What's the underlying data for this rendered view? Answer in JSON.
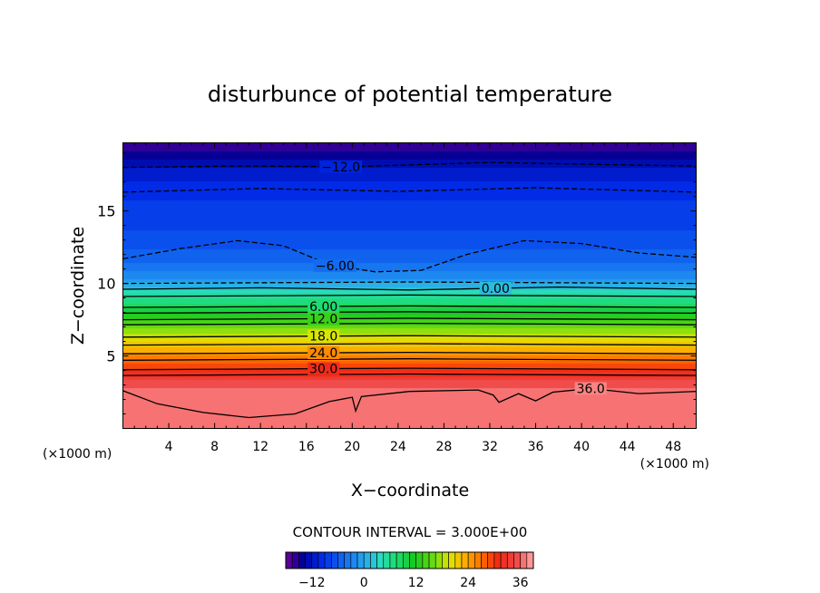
{
  "chart_data": {
    "type": "heatmap",
    "title": "disturbunce of potential temperature",
    "xlabel": "X−coordinate",
    "ylabel": "Z−coordinate",
    "x_unit_left": "(×1000 m)",
    "x_unit_right": "(×1000 m)",
    "xlim": [
      0,
      50
    ],
    "ylim": [
      0,
      19.7
    ],
    "x_ticks": [
      4,
      8,
      12,
      16,
      20,
      24,
      28,
      32,
      36,
      40,
      44,
      48
    ],
    "x_tick_labels": [
      "4",
      "8",
      "12",
      "16",
      "20",
      "24",
      "28",
      "32",
      "36",
      "40",
      "44",
      "48"
    ],
    "y_ticks": [
      5,
      10,
      15
    ],
    "y_tick_labels": [
      "5",
      "10",
      "15"
    ],
    "contour_interval_text": "CONTOUR INTERVAL = 3.000E+00",
    "colorbar": {
      "range": [
        -18,
        39
      ],
      "step": 1.5,
      "ticks": [
        -12,
        0,
        12,
        24,
        36
      ],
      "tick_labels": [
        "−12",
        "0",
        "12",
        "24",
        "36"
      ]
    },
    "field_profile": [
      {
        "z": 0.0,
        "v": 37.0
      },
      {
        "z": 1.8,
        "v": 37.5
      },
      {
        "z": 2.6,
        "v": 36.5
      },
      {
        "z": 3.2,
        "v": 35.0
      },
      {
        "z": 3.6,
        "v": 33.0
      },
      {
        "z": 4.2,
        "v": 30.0
      },
      {
        "z": 5.0,
        "v": 25.5
      },
      {
        "z": 5.6,
        "v": 22.5
      },
      {
        "z": 6.4,
        "v": 19.0
      },
      {
        "z": 7.2,
        "v": 15.0
      },
      {
        "z": 8.0,
        "v": 11.0
      },
      {
        "z": 8.8,
        "v": 7.0
      },
      {
        "z": 9.6,
        "v": 3.0
      },
      {
        "z": 10.0,
        "v": 0.5
      },
      {
        "z": 10.5,
        "v": -2.0
      },
      {
        "z": 11.5,
        "v": -4.5
      },
      {
        "z": 13.0,
        "v": -7.0
      },
      {
        "z": 15.0,
        "v": -8.5
      },
      {
        "z": 16.5,
        "v": -9.5
      },
      {
        "z": 18.0,
        "v": -12.0
      },
      {
        "z": 19.0,
        "v": -14.5
      },
      {
        "z": 19.7,
        "v": -16.5
      }
    ],
    "contours": [
      {
        "level": -12,
        "style": "dashed",
        "label": "−12.0",
        "label_x": 19.0,
        "label_pts": [
          [
            0,
            18.0
          ],
          [
            10,
            18.1
          ],
          [
            20,
            18.05
          ],
          [
            32,
            18.35
          ],
          [
            42,
            18.2
          ],
          [
            50,
            18.1
          ]
        ]
      },
      {
        "level": -9,
        "style": "dashed",
        "label": "",
        "label_x": null,
        "label_pts": [
          [
            0,
            16.3
          ],
          [
            12,
            16.55
          ],
          [
            24,
            16.35
          ],
          [
            36,
            16.6
          ],
          [
            50,
            16.3
          ]
        ]
      },
      {
        "level": -6,
        "style": "dashed",
        "label": "−6.00",
        "label_x": 18.5,
        "label_pts": [
          [
            0,
            11.7
          ],
          [
            5,
            12.4
          ],
          [
            10,
            12.95
          ],
          [
            14,
            12.6
          ],
          [
            18,
            11.3
          ],
          [
            22,
            10.8
          ],
          [
            26,
            10.9
          ],
          [
            30,
            12.0
          ],
          [
            35,
            12.95
          ],
          [
            40,
            12.75
          ],
          [
            45,
            12.1
          ],
          [
            50,
            11.8
          ]
        ]
      },
      {
        "level": -3,
        "style": "dashed",
        "label": "",
        "label_x": null,
        "label_pts": [
          [
            0,
            10.0
          ],
          [
            25,
            10.1
          ],
          [
            50,
            10.0
          ]
        ]
      },
      {
        "level": 0,
        "style": "solid",
        "label": "0.00",
        "label_x": 32.5,
        "label_pts": [
          [
            0,
            9.6
          ],
          [
            12,
            9.7
          ],
          [
            25,
            9.55
          ],
          [
            38,
            9.75
          ],
          [
            50,
            9.6
          ]
        ]
      },
      {
        "level": 3,
        "style": "solid",
        "label": "",
        "label_x": null,
        "label_pts": [
          [
            0,
            9.1
          ],
          [
            25,
            9.2
          ],
          [
            50,
            9.1
          ]
        ]
      },
      {
        "level": 6,
        "style": "solid",
        "label": "6.00",
        "label_x": 17.5,
        "label_pts": [
          [
            0,
            8.35
          ],
          [
            25,
            8.45
          ],
          [
            50,
            8.35
          ]
        ]
      },
      {
        "level": 9,
        "style": "solid",
        "label": "",
        "label_x": null,
        "label_pts": [
          [
            0,
            7.95
          ],
          [
            25,
            8.05
          ],
          [
            50,
            7.95
          ]
        ]
      },
      {
        "level": 12,
        "style": "solid",
        "label": "12.0",
        "label_x": 17.5,
        "label_pts": [
          [
            0,
            7.5
          ],
          [
            25,
            7.6
          ],
          [
            50,
            7.5
          ]
        ]
      },
      {
        "level": 15,
        "style": "solid",
        "label": "",
        "label_x": null,
        "label_pts": [
          [
            0,
            7.15
          ],
          [
            25,
            7.25
          ],
          [
            50,
            7.15
          ]
        ]
      },
      {
        "level": 18,
        "style": "solid",
        "label": "18.0",
        "label_x": 17.5,
        "label_pts": [
          [
            0,
            6.3
          ],
          [
            25,
            6.4
          ],
          [
            50,
            6.3
          ]
        ]
      },
      {
        "level": 21,
        "style": "solid",
        "label": "",
        "label_x": null,
        "label_pts": [
          [
            0,
            5.75
          ],
          [
            25,
            5.85
          ],
          [
            50,
            5.75
          ]
        ]
      },
      {
        "level": 24,
        "style": "solid",
        "label": "24.0",
        "label_x": 17.5,
        "label_pts": [
          [
            0,
            5.15
          ],
          [
            25,
            5.25
          ],
          [
            50,
            5.15
          ]
        ]
      },
      {
        "level": 27,
        "style": "solid",
        "label": "",
        "label_x": null,
        "label_pts": [
          [
            0,
            4.7
          ],
          [
            25,
            4.8
          ],
          [
            50,
            4.7
          ]
        ]
      },
      {
        "level": 30,
        "style": "solid",
        "label": "30.0",
        "label_x": 17.5,
        "label_pts": [
          [
            0,
            4.05
          ],
          [
            25,
            4.15
          ],
          [
            50,
            4.05
          ]
        ]
      },
      {
        "level": 33,
        "style": "solid",
        "label": "",
        "label_x": null,
        "label_pts": [
          [
            0,
            3.65
          ],
          [
            25,
            3.75
          ],
          [
            50,
            3.65
          ]
        ]
      },
      {
        "level": 36,
        "style": "solid",
        "label": "36.0",
        "label_x": 40.8,
        "label_pts": [
          [
            0,
            2.6
          ],
          [
            3,
            1.7
          ],
          [
            7,
            1.1
          ],
          [
            11,
            0.75
          ],
          [
            15,
            1.0
          ],
          [
            18,
            1.85
          ],
          [
            20,
            2.15
          ],
          [
            20.3,
            1.2
          ],
          [
            20.8,
            2.2
          ],
          [
            25,
            2.55
          ],
          [
            31,
            2.65
          ],
          [
            32.3,
            2.3
          ],
          [
            32.8,
            1.8
          ],
          [
            34.5,
            2.4
          ],
          [
            36,
            1.9
          ],
          [
            37.5,
            2.5
          ],
          [
            40.8,
            2.75
          ],
          [
            45,
            2.4
          ],
          [
            50,
            2.55
          ]
        ]
      }
    ]
  }
}
